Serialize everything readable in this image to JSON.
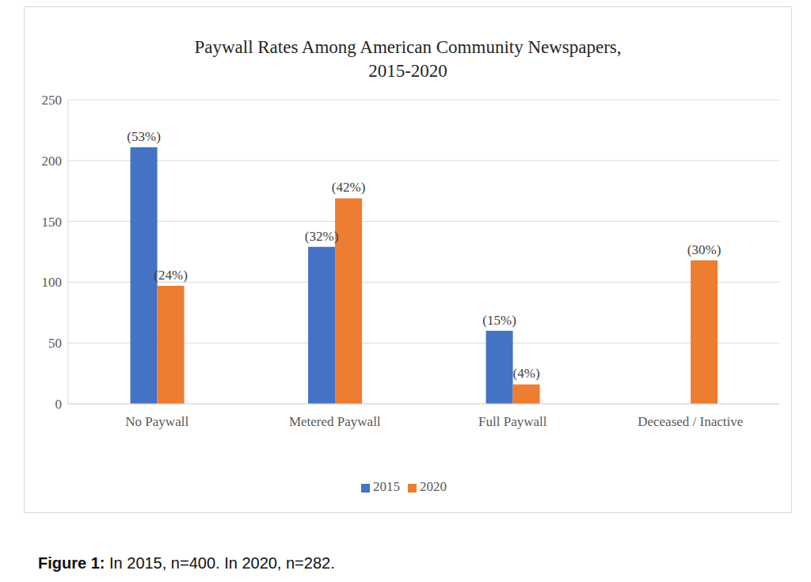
{
  "chart_data": {
    "type": "bar",
    "title": [
      "Paywall Rates Among American Community Newspapers,",
      "2015-2020"
    ],
    "categories": [
      "No Paywall",
      "Metered Paywall",
      "Full Paywall",
      "Deceased / Inactive"
    ],
    "series": [
      {
        "name": "2015",
        "color": "#4472c4",
        "values": [
          211,
          129,
          60,
          null
        ],
        "value_labels": [
          "(53%)",
          "(32%)",
          "(15%)",
          null
        ]
      },
      {
        "name": "2020",
        "color": "#ed7d31",
        "values": [
          97,
          169,
          16,
          118
        ],
        "value_labels": [
          "(24%)",
          "(42%)",
          "(4%)",
          "(30%)"
        ]
      }
    ],
    "ylim": [
      0,
      250
    ],
    "yticks": [
      0,
      50,
      100,
      150,
      200,
      250
    ],
    "grid": true,
    "legend": "bottom",
    "data_labels": true,
    "caption": {
      "label": "Figure 1:",
      "text": "In 2015, n=400. In 2020, n=282."
    }
  }
}
